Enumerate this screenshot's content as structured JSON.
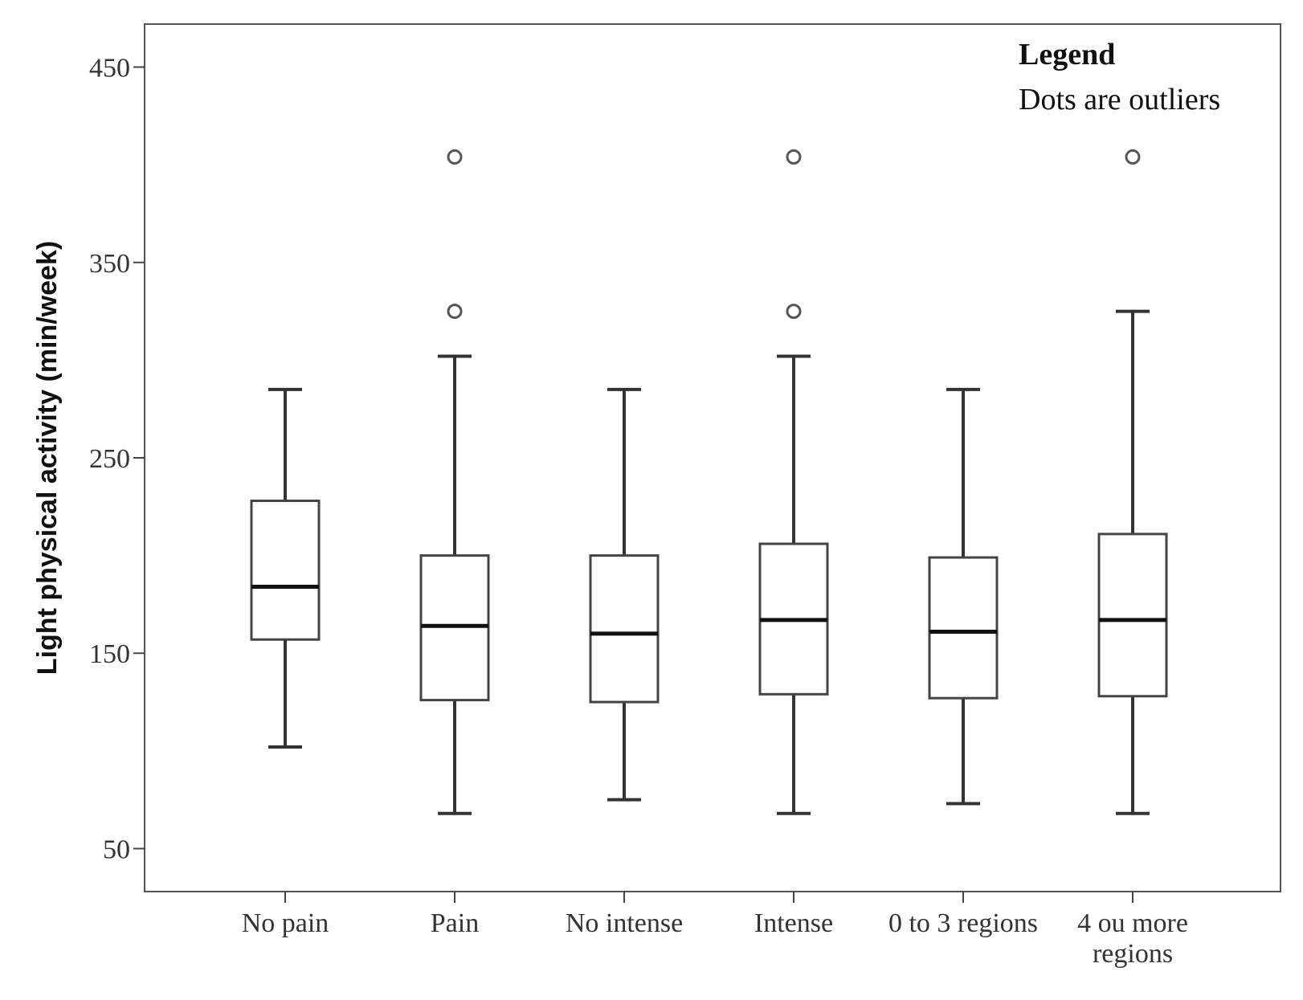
{
  "chart_data": {
    "type": "boxplot",
    "ylabel": "Light physical activity (min/week)",
    "xlabel": "",
    "ylim": [
      28,
      472
    ],
    "yticks": [
      50,
      150,
      250,
      350,
      450
    ],
    "legend": {
      "title": "Legend",
      "text": "Dots are outliers",
      "placement": "top-right"
    },
    "categories": [
      {
        "label": [
          "No pain"
        ],
        "min": 102,
        "q1": 157,
        "median": 184,
        "q3": 228,
        "max": 285,
        "outliers": []
      },
      {
        "label": [
          "Pain"
        ],
        "min": 68,
        "q1": 126,
        "median": 164,
        "q3": 200,
        "max": 302,
        "outliers": [
          325,
          404
        ]
      },
      {
        "label": [
          "No intense"
        ],
        "min": 75,
        "q1": 125,
        "median": 160,
        "q3": 200,
        "max": 285,
        "outliers": []
      },
      {
        "label": [
          "Intense"
        ],
        "min": 68,
        "q1": 129,
        "median": 167,
        "q3": 206,
        "max": 302,
        "outliers": [
          325,
          404
        ]
      },
      {
        "label": [
          "0 to 3 regions"
        ],
        "min": 73,
        "q1": 127,
        "median": 161,
        "q3": 199,
        "max": 285,
        "outliers": []
      },
      {
        "label": [
          "4 ou more",
          "regions"
        ],
        "min": 68,
        "q1": 128,
        "median": 167,
        "q3": 211,
        "max": 325,
        "outliers": [
          404
        ]
      }
    ]
  }
}
